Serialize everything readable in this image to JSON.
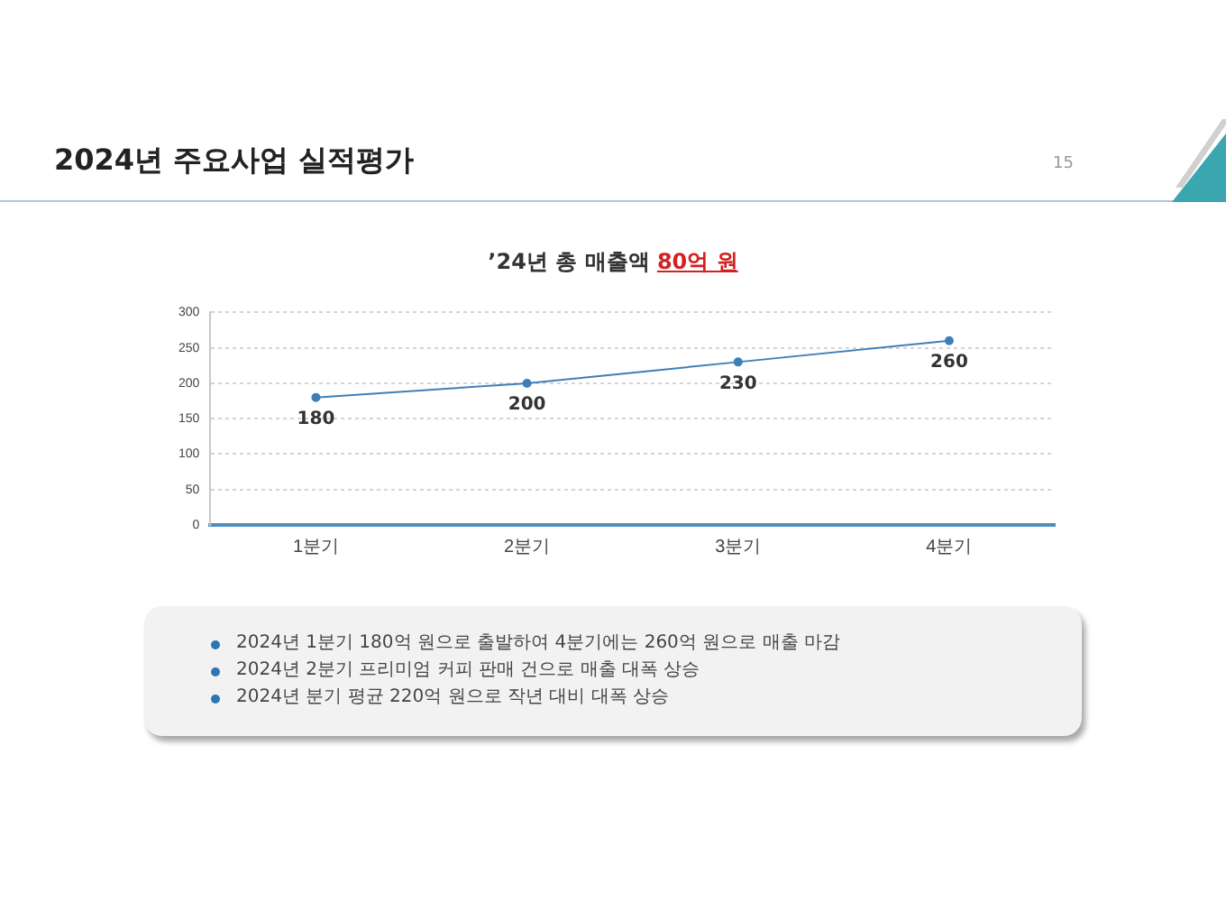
{
  "chart_data": {
    "type": "line",
    "title": "2024년 주요사업 실적평가",
    "subtitle": "’24년 총 매출액 80억 원",
    "categories": [
      "1분기",
      "2분기",
      "3분기",
      "4분기"
    ],
    "series": [
      {
        "color": "#3f7fb8",
        "values": [
          180,
          200,
          230,
          260
        ]
      }
    ],
    "ylim": [
      0,
      300
    ],
    "yticks": [
      0,
      50,
      100,
      150,
      200,
      250,
      300
    ],
    "grid": "y",
    "marker": "circle",
    "data_labels": true,
    "annotations": [
      "15",
      "2024년 1분기 180억 원으로 출발하여 4분기에는 260억 원으로 매출 마감",
      "2024년 2분기 프리미엄 커피 판매 건으로 매출 대폭 상승",
      "2024년 분기 평균 220억 원으로 작년 대비 대폭 상승"
    ]
  }
}
